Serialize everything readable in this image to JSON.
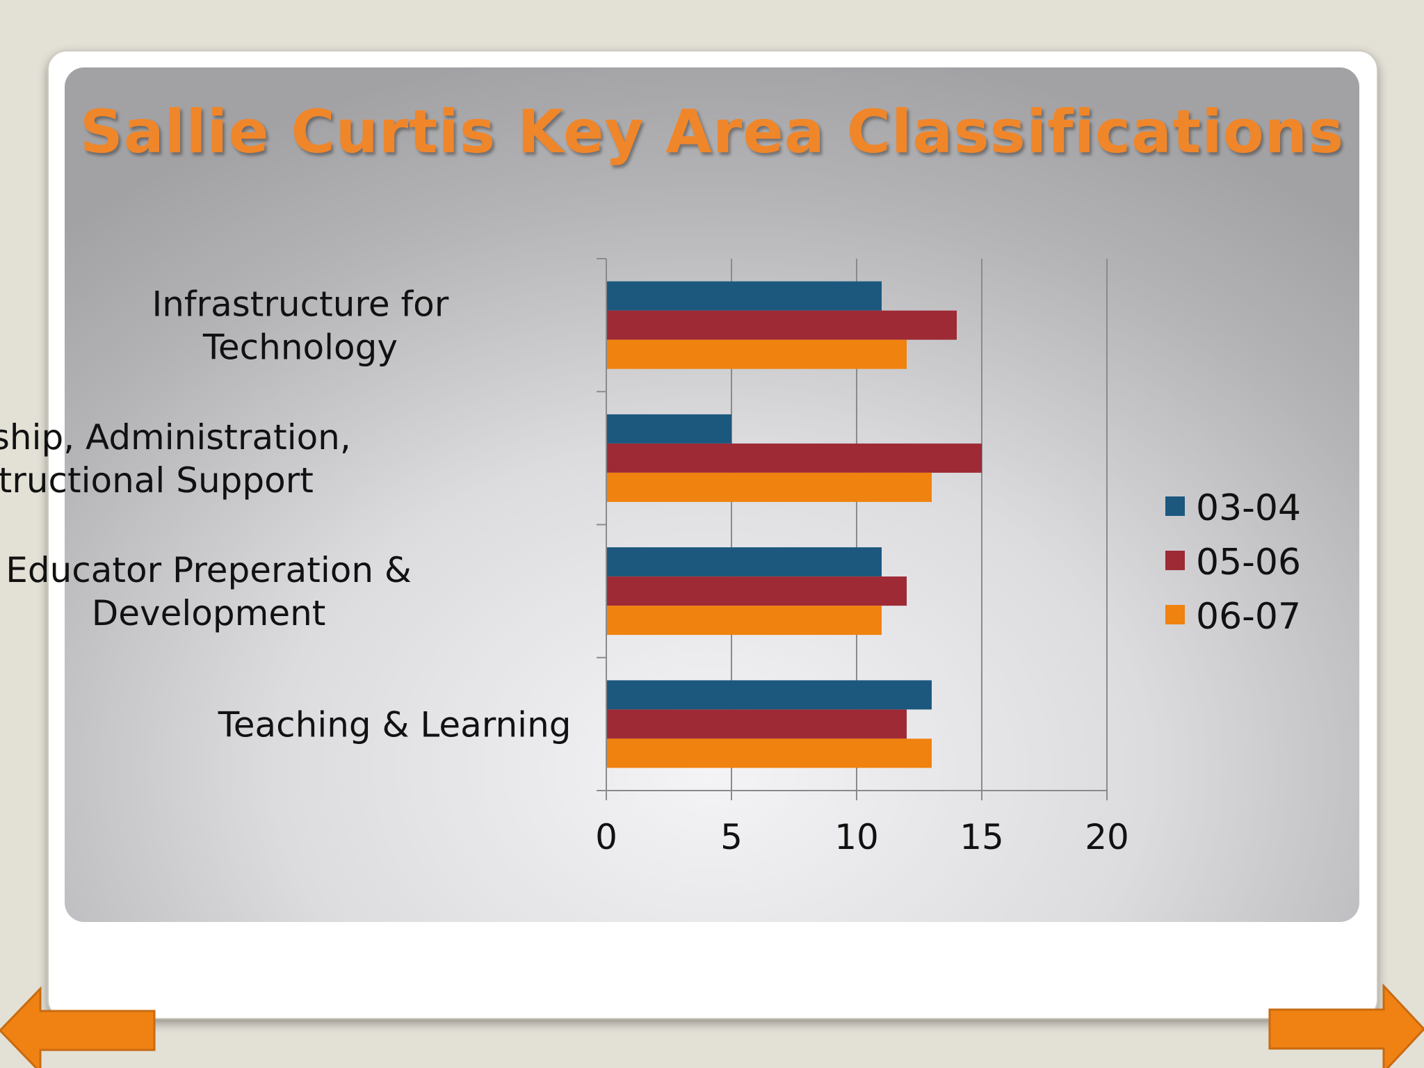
{
  "slide": {
    "title": "Sallie Curtis Key Area Classifications"
  },
  "chart_data": {
    "type": "bar",
    "orientation": "horizontal",
    "title": "",
    "categories": [
      [
        "Infrastructure for",
        "Technology"
      ],
      [
        "Leadership, Administration,",
        "& Instructional Support"
      ],
      [
        "Educator Preperation &",
        "Development"
      ],
      [
        "Teaching & Learning"
      ]
    ],
    "series": [
      {
        "name": "03-04",
        "color": "#1c587e",
        "values": [
          11,
          5,
          11,
          13
        ]
      },
      {
        "name": "05-06",
        "color": "#9e2a36",
        "values": [
          14,
          15,
          12,
          12
        ]
      },
      {
        "name": "06-07",
        "color": "#f0820f",
        "values": [
          12,
          13,
          11,
          13
        ]
      }
    ],
    "xlim": [
      0,
      20
    ],
    "xticks": [
      "0",
      "5",
      "10",
      "15",
      "20"
    ],
    "grid": true,
    "legend": "right"
  },
  "nav": {
    "prev_icon": "arrow-left-icon",
    "next_icon": "arrow-right-icon",
    "arrow_color": "#f08214"
  }
}
